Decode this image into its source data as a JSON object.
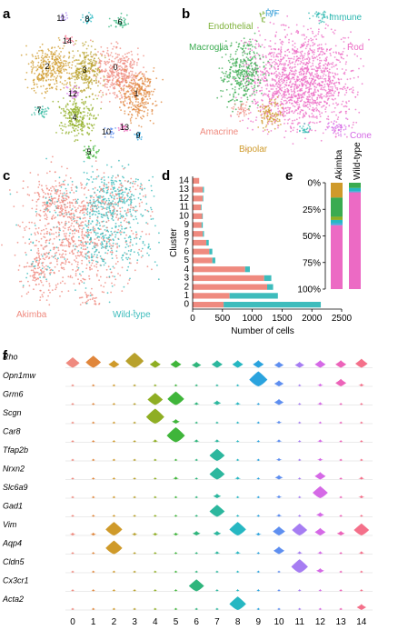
{
  "panels": {
    "a": {
      "letter": "a"
    },
    "b": {
      "letter": "b"
    },
    "c": {
      "letter": "c"
    },
    "d": {
      "letter": "d"
    },
    "e": {
      "letter": "e"
    },
    "f": {
      "letter": "f"
    }
  },
  "colors": {
    "akimba": "#ef8a7f",
    "wild_type": "#3dbcbc",
    "cluster": [
      "#ef8a7f",
      "#e0863b",
      "#cf9a2a",
      "#b8a12c",
      "#8fae23",
      "#3fb53a",
      "#2fb57c",
      "#2cb79e",
      "#26b7c2",
      "#2aa3de",
      "#5f8ff0",
      "#a67df2",
      "#d569e6",
      "#ec63b9",
      "#f4708a"
    ]
  },
  "tsne_a": {
    "cluster_labels": [
      {
        "id": "0",
        "label": "0"
      },
      {
        "id": "1",
        "label": "1"
      },
      {
        "id": "2",
        "label": "2"
      },
      {
        "id": "3",
        "label": "3"
      },
      {
        "id": "4",
        "label": "4"
      },
      {
        "id": "5",
        "label": "5"
      },
      {
        "id": "6",
        "label": "6"
      },
      {
        "id": "7",
        "label": "7"
      },
      {
        "id": "8",
        "label": "8"
      },
      {
        "id": "9",
        "label": "9"
      },
      {
        "id": "10",
        "label": "10"
      },
      {
        "id": "11",
        "label": "11"
      },
      {
        "id": "12",
        "label": "12"
      },
      {
        "id": "13",
        "label": "13"
      },
      {
        "id": "14",
        "label": "14"
      }
    ]
  },
  "tsne_b": {
    "cell_types": [
      {
        "name": "Endothelial",
        "color": "#7fb23b"
      },
      {
        "name": "P/F",
        "color": "#4aa8dc"
      },
      {
        "name": "Immune",
        "color": "#2cb7b0"
      },
      {
        "name": "Macroglia",
        "color": "#3aab50"
      },
      {
        "name": "Rod",
        "color": "#ec6ac4"
      },
      {
        "name": "Amacrine",
        "color": "#ef8a7f"
      },
      {
        "name": "Bipolar",
        "color": "#cf9a2a"
      },
      {
        "name": "Cone",
        "color": "#d569e6"
      }
    ]
  },
  "tsne_c": {
    "legend": [
      {
        "name": "Akimba",
        "color": "#ef8a7f"
      },
      {
        "name": "Wild-type",
        "color": "#3dbcbc"
      }
    ]
  },
  "chart_data": [
    {
      "panel": "d",
      "type": "bar",
      "orientation": "horizontal",
      "stacked": true,
      "categories": [
        "0",
        "1",
        "2",
        "3",
        "4",
        "5",
        "6",
        "7",
        "8",
        "9",
        "10",
        "11",
        "12",
        "13",
        "14"
      ],
      "series": [
        {
          "name": "Akimba",
          "values": [
            520,
            620,
            1250,
            1200,
            880,
            330,
            280,
            230,
            170,
            150,
            160,
            140,
            170,
            170,
            110
          ]
        },
        {
          "name": "Wild-type",
          "values": [
            1630,
            810,
            100,
            120,
            80,
            50,
            50,
            40,
            20,
            20,
            10,
            10,
            10,
            20,
            0
          ]
        }
      ],
      "xlabel": "Number of cells",
      "ylabel": "Cluster",
      "xlim": [
        0,
        2500
      ],
      "xticks": [
        "0",
        "500",
        "1000",
        "1500",
        "2000",
        "2500"
      ]
    },
    {
      "panel": "e",
      "type": "bar",
      "stacked": true,
      "orientation": "vertical",
      "categories": [
        "Akimba",
        "Wild-type"
      ],
      "ylim": [
        0,
        100
      ],
      "yaxis_inverted": true,
      "yticks": [
        "0%",
        "25%",
        "50%",
        "75%",
        "100%"
      ],
      "series": [
        {
          "name": "Bipolar",
          "color": "#cf9a2a",
          "values": [
            14,
            0
          ]
        },
        {
          "name": "Macroglia",
          "color": "#3aab50",
          "values": [
            18,
            5
          ]
        },
        {
          "name": "Endothelial",
          "color": "#8fae23",
          "values": [
            3,
            0
          ]
        },
        {
          "name": "Immune",
          "color": "#26b7c2",
          "values": [
            3,
            3
          ]
        },
        {
          "name": "P/F",
          "color": "#4aa8dc",
          "values": [
            2,
            1
          ]
        },
        {
          "name": "Rod",
          "color": "#ec6ac4",
          "values": [
            60,
            91
          ]
        }
      ]
    },
    {
      "panel": "f",
      "type": "violin",
      "genes": [
        "Rho",
        "Opn1mw",
        "Grm6",
        "Scgn",
        "Car8",
        "Tfap2b",
        "Nrxn2",
        "Slc6a9",
        "Gad1",
        "Vim",
        "Aqp4",
        "Cldn5",
        "Cx3cr1",
        "Acta2"
      ],
      "clusters": [
        "0",
        "1",
        "2",
        "3",
        "4",
        "5",
        "6",
        "7",
        "8",
        "9",
        "10",
        "11",
        "12",
        "13",
        "14"
      ],
      "expression": [
        [
          0.7,
          0.8,
          0.5,
          1.0,
          0.5,
          0.5,
          0.4,
          0.5,
          0.5,
          0.5,
          0.4,
          0.4,
          0.5,
          0.5,
          0.6
        ],
        [
          0.1,
          0.1,
          0.1,
          0.1,
          0.1,
          0.1,
          0.1,
          0.1,
          0.1,
          1.0,
          0.4,
          0.1,
          0.2,
          0.5,
          0.2
        ],
        [
          0.1,
          0.1,
          0.1,
          0.1,
          0.8,
          0.9,
          0.2,
          0.3,
          0.2,
          0.1,
          0.4,
          0.1,
          0.2,
          0.1,
          0.1
        ],
        [
          0.1,
          0.1,
          0.1,
          0.1,
          1.0,
          0.3,
          0.1,
          0.1,
          0.1,
          0.1,
          0.2,
          0.1,
          0.1,
          0.1,
          0.1
        ],
        [
          0.1,
          0.1,
          0.1,
          0.1,
          0.2,
          1.0,
          0.2,
          0.2,
          0.1,
          0.1,
          0.2,
          0.1,
          0.2,
          0.1,
          0.1
        ],
        [
          0.1,
          0.1,
          0.1,
          0.1,
          0.1,
          0.1,
          0.1,
          0.8,
          0.1,
          0.1,
          0.2,
          0.1,
          0.2,
          0.1,
          0.1
        ],
        [
          0.1,
          0.1,
          0.1,
          0.1,
          0.1,
          0.2,
          0.1,
          0.8,
          0.2,
          0.1,
          0.3,
          0.1,
          0.5,
          0.1,
          0.2
        ],
        [
          0.1,
          0.1,
          0.1,
          0.1,
          0.1,
          0.1,
          0.1,
          0.3,
          0.1,
          0.1,
          0.2,
          0.1,
          0.8,
          0.1,
          0.2
        ],
        [
          0.1,
          0.1,
          0.1,
          0.1,
          0.1,
          0.1,
          0.1,
          0.8,
          0.1,
          0.1,
          0.2,
          0.1,
          0.3,
          0.1,
          0.1
        ],
        [
          0.2,
          0.2,
          0.9,
          0.2,
          0.2,
          0.2,
          0.3,
          0.3,
          0.9,
          0.2,
          0.6,
          0.8,
          0.5,
          0.3,
          0.8
        ],
        [
          0.1,
          0.1,
          0.9,
          0.1,
          0.1,
          0.1,
          0.1,
          0.2,
          0.2,
          0.1,
          0.5,
          0.2,
          0.2,
          0.1,
          0.2
        ],
        [
          0.1,
          0.1,
          0.1,
          0.1,
          0.1,
          0.1,
          0.1,
          0.1,
          0.1,
          0.1,
          0.1,
          0.9,
          0.3,
          0.1,
          0.1
        ],
        [
          0.1,
          0.1,
          0.1,
          0.1,
          0.1,
          0.1,
          0.8,
          0.1,
          0.1,
          0.1,
          0.1,
          0.1,
          0.1,
          0.1,
          0.1
        ],
        [
          0.1,
          0.1,
          0.1,
          0.1,
          0.1,
          0.1,
          0.1,
          0.1,
          0.9,
          0.1,
          0.1,
          0.1,
          0.1,
          0.1,
          0.4
        ]
      ]
    }
  ]
}
